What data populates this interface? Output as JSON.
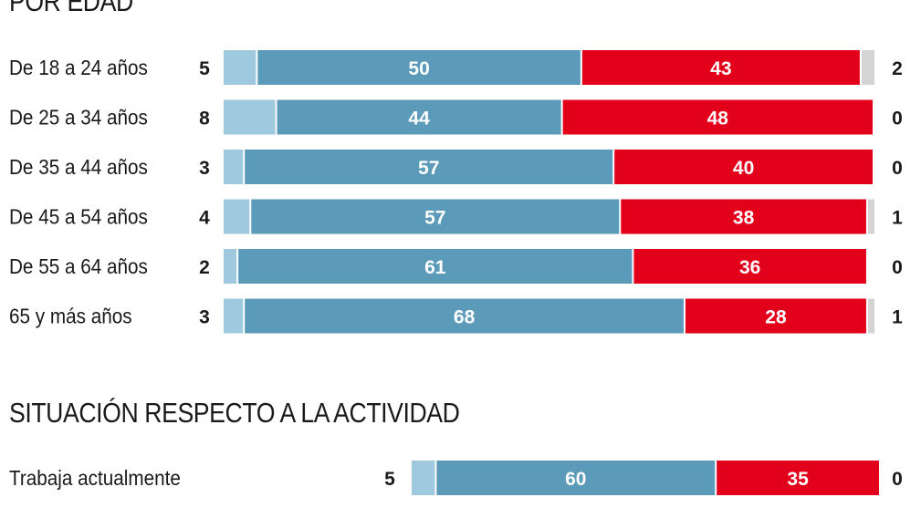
{
  "colors": {
    "minor": "#9ec9df",
    "blue": "#5b9ab8",
    "red": "#e3001b",
    "grey": "#d4d4d4",
    "text": "#1a1a1a"
  },
  "chart_data": [
    {
      "type": "bar",
      "stacked": true,
      "orientation": "horizontal",
      "title": "POR EDAD",
      "categories": [
        "De 18 a 24 años",
        "De 25 a 34 años",
        "De 35 a 44 años",
        "De 45 a 54 años",
        "De 55 a 64 años",
        "65 y más años"
      ],
      "series": [
        {
          "name": "left",
          "values": [
            5,
            8,
            3,
            4,
            2,
            3
          ]
        },
        {
          "name": "blue",
          "values": [
            50,
            44,
            57,
            57,
            61,
            68
          ]
        },
        {
          "name": "red",
          "values": [
            43,
            48,
            40,
            38,
            36,
            28
          ]
        },
        {
          "name": "right",
          "values": [
            2,
            0,
            0,
            1,
            0,
            1
          ]
        }
      ]
    },
    {
      "type": "bar",
      "stacked": true,
      "orientation": "horizontal",
      "title": "SITUACIÓN RESPECTO A LA ACTIVIDAD",
      "categories": [
        "Trabaja actualmente"
      ],
      "series": [
        {
          "name": "left",
          "values": [
            5
          ]
        },
        {
          "name": "blue",
          "values": [
            60
          ]
        },
        {
          "name": "red",
          "values": [
            35
          ]
        },
        {
          "name": "right",
          "values": [
            0
          ]
        }
      ]
    }
  ]
}
